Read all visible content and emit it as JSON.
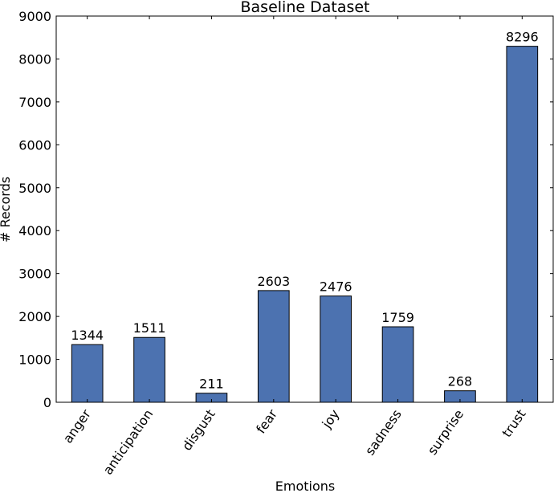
{
  "chart_data": {
    "type": "bar",
    "title": "Baseline Dataset",
    "xlabel": "Emotions",
    "ylabel": "# Records",
    "categories": [
      "anger",
      "anticipation",
      "disgust",
      "fear",
      "joy",
      "sadness",
      "surprise",
      "trust"
    ],
    "values": [
      1344,
      1511,
      211,
      2603,
      2476,
      1759,
      268,
      8296
    ],
    "data_labels": [
      "1344",
      "1511",
      "211",
      "2603",
      "2476",
      "1759",
      "268",
      "8296"
    ],
    "ylim": [
      0,
      9000
    ],
    "yticks": [
      0,
      1000,
      2000,
      3000,
      4000,
      5000,
      6000,
      7000,
      8000,
      9000
    ],
    "ytick_labels": [
      "0",
      "1000",
      "2000",
      "3000",
      "4000",
      "5000",
      "6000",
      "7000",
      "8000",
      "9000"
    ],
    "grid": false,
    "colors": {
      "bar": "#4c72b0",
      "bar_edge": "#000000",
      "axis": "#000000"
    }
  }
}
